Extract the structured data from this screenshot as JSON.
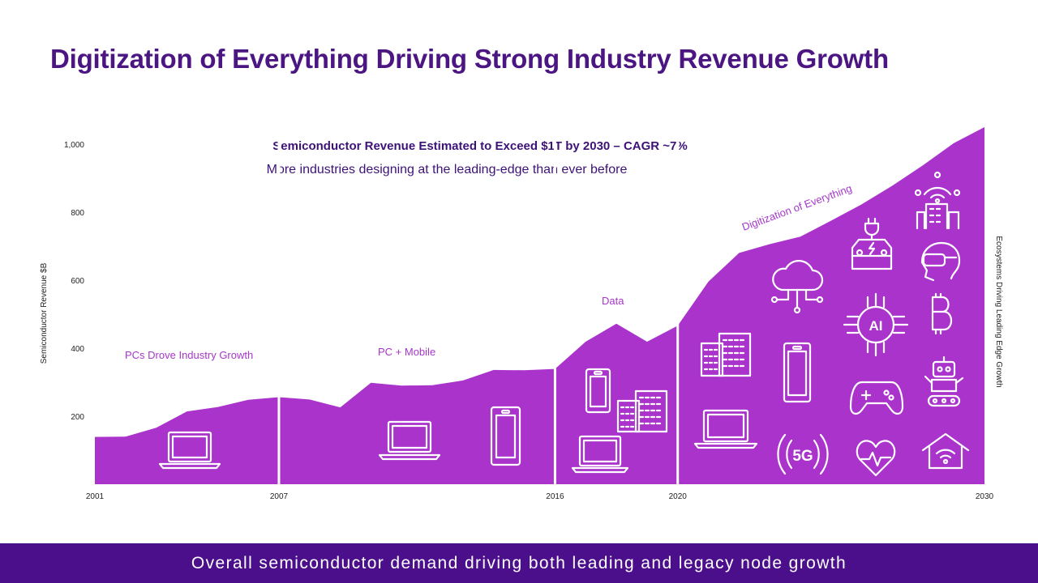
{
  "title": "Digitization of Everything Driving Strong Industry Revenue Growth",
  "footer": "Overall semiconductor demand driving both leading and legacy node growth",
  "colors": {
    "title": "#4b1582",
    "area_fill": "#aa33cc",
    "footer_bg": "#4b0f8c",
    "annotation": "#a637c9",
    "subtitle": "#3d1278"
  },
  "chart_data": {
    "type": "area",
    "subtitle": "Semiconductor Revenue Estimated to Exceed $1T by 2030 – CAGR ~7%",
    "subtitle2": "More industries designing at the leading-edge than ever before",
    "ylabel": "Semiconductor Revenue $B",
    "right_label": "Ecosystems Driving Leading Edge Growth",
    "xlim": [
      2001,
      2030
    ],
    "ylim": [
      0,
      1000
    ],
    "y_ticks": [
      200,
      400,
      600,
      800,
      1000
    ],
    "y_tick_labels": [
      "200",
      "400",
      "600",
      "800",
      "1,000"
    ],
    "x_tick_labels": [
      "2001",
      "2007",
      "2016",
      "2020",
      "2030"
    ],
    "x_tick_values": [
      2001,
      2007,
      2016,
      2020,
      2030
    ],
    "series": [
      {
        "x": [
          2001,
          2002,
          2003,
          2004,
          2005,
          2006,
          2007,
          2008,
          2009,
          2010,
          2011,
          2012,
          2013,
          2014,
          2015,
          2016,
          2017,
          2018,
          2019,
          2020,
          2021,
          2022,
          2023,
          2024,
          2025,
          2026,
          2027,
          2028,
          2029,
          2030
        ],
        "values": [
          139,
          140,
          166,
          214,
          227,
          248,
          256,
          249,
          226,
          298,
          290,
          291,
          305,
          336,
          335,
          339,
          419,
          472,
          419,
          466,
          596,
          680,
          706,
          728,
          775,
          823,
          878,
          938,
          1003,
          1050
        ]
      }
    ],
    "dividers": [
      2007,
      2016,
      2020
    ],
    "annotations": [
      {
        "text": "PCs Drove Industry Growth"
      },
      {
        "text": "PC + Mobile"
      },
      {
        "text": "Data"
      },
      {
        "text": "Digitization of Everything"
      }
    ],
    "icons": [
      "laptop-icon",
      "laptop-icon",
      "smartphone-icon",
      "smartphone-icon",
      "server-rack-icon",
      "laptop-icon",
      "server-rack-icon",
      "laptop-icon",
      "cloud-network-icon",
      "smartphone-icon",
      "5g-signal-icon",
      "electric-car-icon",
      "ai-chip-icon",
      "gamepad-icon",
      "heart-rate-icon",
      "smart-city-icon",
      "vr-headset-icon",
      "bitcoin-icon",
      "robot-icon",
      "smart-home-wifi-icon"
    ]
  }
}
